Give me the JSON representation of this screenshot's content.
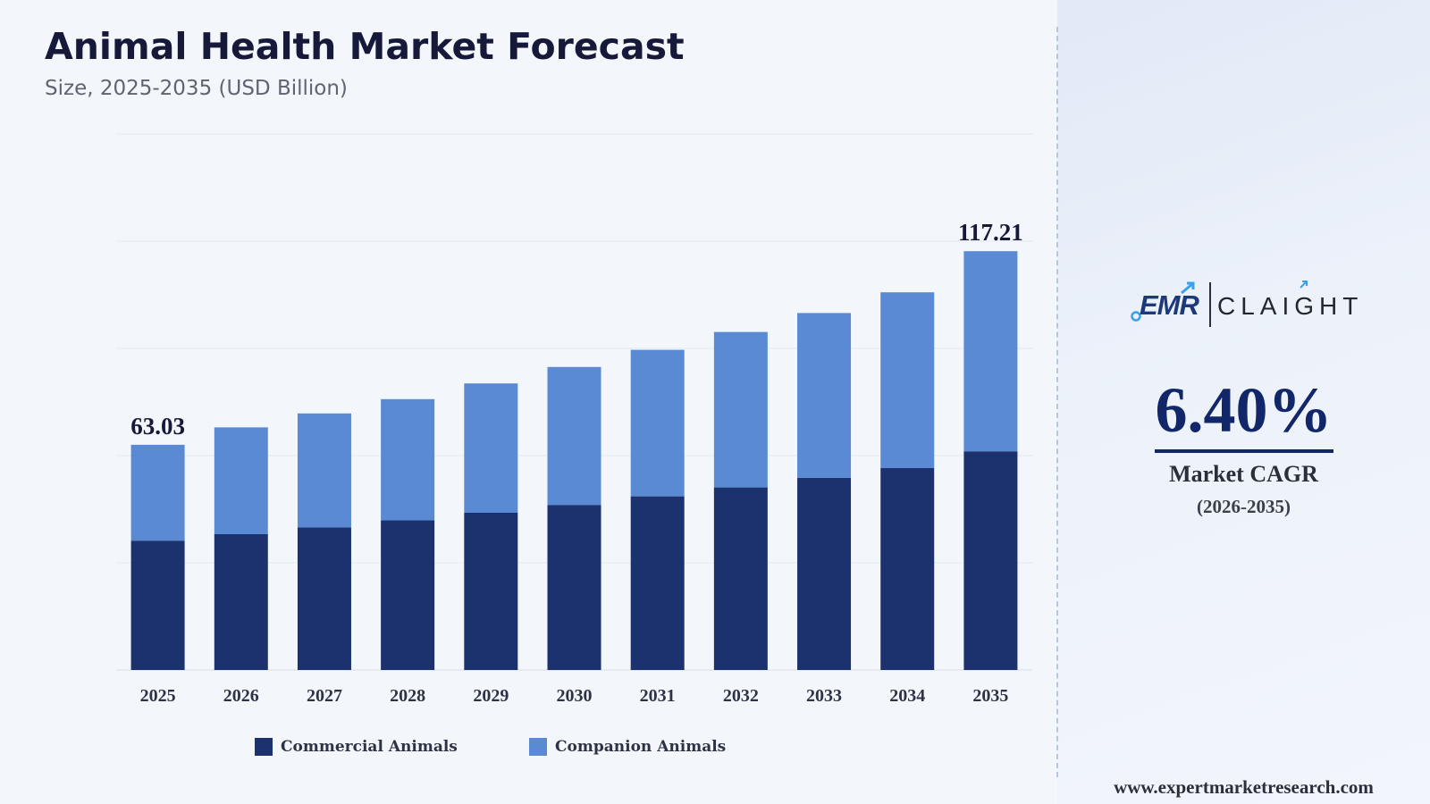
{
  "header": {
    "title": "Animal Health Market Forecast",
    "subtitle": "Size, 2025-2035 (USD Billion)"
  },
  "chart_data": {
    "type": "bar",
    "stacked": true,
    "categories": [
      "2025",
      "2026",
      "2027",
      "2028",
      "2029",
      "2030",
      "2031",
      "2032",
      "2033",
      "2034",
      "2035"
    ],
    "series": [
      {
        "name": "Commercial Animals",
        "color": "#1b326e",
        "values": [
          36.2,
          38.0,
          39.9,
          41.9,
          44.0,
          46.2,
          48.6,
          51.1,
          53.8,
          56.5,
          61.2
        ]
      },
      {
        "name": "Companion Animals",
        "color": "#5a8ad3",
        "values": [
          26.83,
          29.9,
          31.9,
          33.9,
          36.2,
          38.6,
          41.0,
          43.5,
          46.1,
          49.2,
          56.01
        ]
      }
    ],
    "totals_labels": [
      {
        "category": "2025",
        "text": "63.03",
        "value": 63.03
      },
      {
        "category": "2035",
        "text": "117.21",
        "value": 117.21
      }
    ],
    "ylim": [
      0,
      150
    ],
    "grid": true,
    "legend_position": "bottom"
  },
  "brand": {
    "logo_left": "EMR",
    "logo_right": "CLAIGHT",
    "logo_arrow_color": "#3aa0e8"
  },
  "stats": {
    "cagr_value": "6.40%",
    "cagr_label": "Market CAGR",
    "cagr_period": "(2026-2035)"
  },
  "footer": {
    "website": "www.expertmarketresearch.com"
  },
  "colors": {
    "title": "#16193a",
    "accent": "#12276a",
    "commercial": "#1b326e",
    "companion": "#5a8ad3"
  }
}
